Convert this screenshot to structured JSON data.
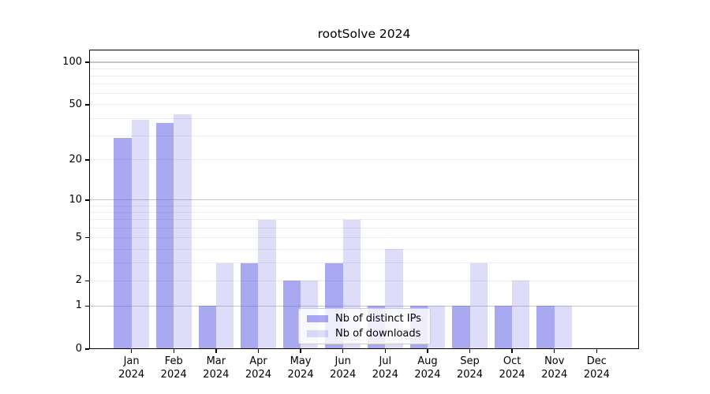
{
  "figure": {
    "background": "#ffffff"
  },
  "chart_data": {
    "type": "bar",
    "title": "rootSolve 2024",
    "categories": [
      "Jan",
      "Feb",
      "Mar",
      "Apr",
      "May",
      "Jun",
      "Jul",
      "Aug",
      "Sep",
      "Oct",
      "Nov",
      "Dec"
    ],
    "x_year": "2024",
    "series": [
      {
        "name": "Nb of distinct IPs",
        "color": "rgba(83,83,227,0.5)",
        "values": [
          29,
          37,
          1,
          3,
          2,
          3,
          1,
          1,
          1,
          1,
          1,
          0
        ]
      },
      {
        "name": "Nb of downloads",
        "color": "rgba(83,83,227,0.2)",
        "values": [
          39,
          43,
          3,
          7,
          2,
          7,
          4,
          1,
          3,
          2,
          1,
          0
        ]
      }
    ],
    "y_scale": "log10(1+x)",
    "y_ticks": [
      0,
      1,
      2,
      5,
      10,
      20,
      50,
      100
    ],
    "grid": {
      "major_values": [
        1,
        10,
        100
      ],
      "minor_values": [
        2,
        3,
        4,
        5,
        6,
        7,
        8,
        9,
        20,
        30,
        40,
        50,
        60,
        70,
        80,
        90
      ],
      "major_color": "#c6c6c6",
      "minor_color": "#ececec",
      "axis_color": "#000000"
    },
    "legend": {
      "position": "lower center"
    }
  }
}
